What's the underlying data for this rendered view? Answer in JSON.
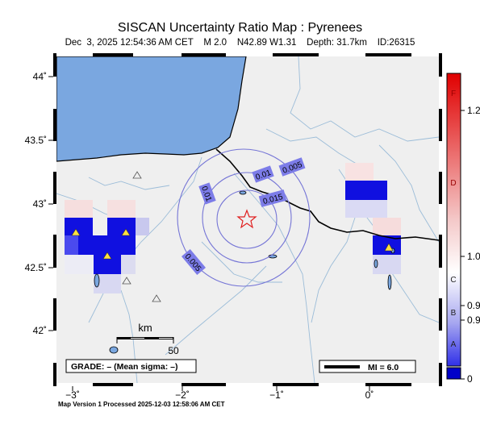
{
  "title": "SISCAN Uncertainty Ratio Map : Pyrenees",
  "subtitle": {
    "datetime": "Dec  3, 2025 12:54:36 AM CET",
    "magnitude": "M 2.0",
    "location": "N42.89 W1.31",
    "depth": "Depth: 31.7km",
    "id": "ID:26315"
  },
  "axes": {
    "lat_ticks": [
      "44˚",
      "43.5˚",
      "43˚",
      "42.5˚",
      "42˚"
    ],
    "lon_ticks": [
      "−3˚",
      "−2˚",
      "−1˚",
      "0˚"
    ]
  },
  "contour_labels": [
    "0.005",
    "0.01",
    "0.015",
    "0.01",
    "0.005"
  ],
  "scale_bar": {
    "unit": "km",
    "value": "50"
  },
  "grade_text": "GRADE: – (Mean sigma: –)",
  "mi_legend": "MI = 6.0",
  "colorbar": {
    "letters": [
      "F",
      "D",
      "C",
      "B",
      "A"
    ],
    "values": [
      "1.2",
      "1.0",
      "0.9",
      "0.9",
      "0"
    ]
  },
  "footer": "Map Version 1 Processed 2025-12-03 12:58:06 AM CET",
  "colors": {
    "sea": "#7aa7e0",
    "land": "#efefef",
    "river": "#9bbcd8",
    "contour": "#7070d0",
    "epicenter": "#e02020",
    "high_blue": "#1010e0",
    "station": "#ffe040"
  },
  "icons": {
    "epicenter": "star-icon",
    "station": "triangle-icon"
  }
}
